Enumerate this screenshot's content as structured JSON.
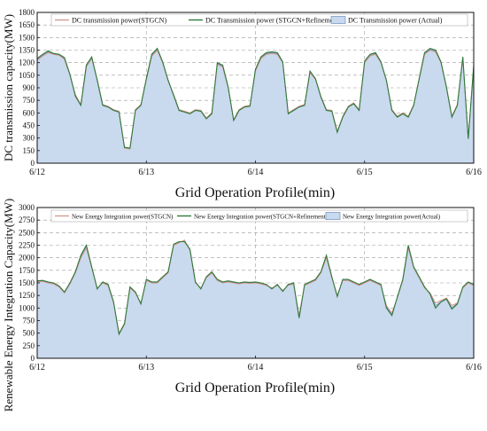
{
  "colors": {
    "stgcn": "#d08f86",
    "refinement": "#2e7a3a",
    "actual_fill": "#c9d9ee",
    "actual_line": "#5b7fb8",
    "grid": "#9a9a9a"
  },
  "chart_data": [
    {
      "type": "area",
      "xlabel": "Grid Operation Profile(min)",
      "ylabel": "DC transmission capacity(MW)",
      "xticks": [
        "6/12",
        "6/13",
        "6/14",
        "6/15",
        "6/16"
      ],
      "xlim": [
        0,
        4
      ],
      "ylim": [
        0,
        1800
      ],
      "yticks": [
        0,
        150,
        300,
        450,
        600,
        750,
        900,
        1050,
        1200,
        1350,
        1500,
        1650,
        1800
      ],
      "grid": true,
      "legend": "top",
      "x": [
        0.0,
        0.05,
        0.1,
        0.15,
        0.2,
        0.25,
        0.3,
        0.35,
        0.4,
        0.45,
        0.5,
        0.55,
        0.6,
        0.65,
        0.7,
        0.75,
        0.8,
        0.85,
        0.9,
        0.95,
        1.0,
        1.05,
        1.1,
        1.15,
        1.2,
        1.25,
        1.3,
        1.35,
        1.4,
        1.45,
        1.5,
        1.55,
        1.6,
        1.65,
        1.7,
        1.75,
        1.8,
        1.85,
        1.9,
        1.95,
        2.0,
        2.05,
        2.1,
        2.15,
        2.2,
        2.25,
        2.3,
        2.35,
        2.4,
        2.45,
        2.5,
        2.55,
        2.6,
        2.65,
        2.7,
        2.75,
        2.8,
        2.85,
        2.9,
        2.95,
        3.0,
        3.05,
        3.1,
        3.15,
        3.2,
        3.25,
        3.3,
        3.35,
        3.4,
        3.45,
        3.5,
        3.55,
        3.6,
        3.65,
        3.7,
        3.75,
        3.8,
        3.85,
        3.9,
        3.95,
        4.0
      ],
      "series": [
        {
          "name": "DC transmission power(STGCN)",
          "style": "line",
          "values": [
            1230,
            1280,
            1320,
            1300,
            1290,
            1240,
            1050,
            820,
            700,
            1150,
            1250,
            1000,
            700,
            680,
            640,
            620,
            180,
            170,
            640,
            700,
            1000,
            1280,
            1350,
            1200,
            980,
            820,
            640,
            620,
            600,
            640,
            630,
            540,
            600,
            1180,
            1150,
            900,
            520,
            640,
            680,
            690,
            1100,
            1250,
            1300,
            1310,
            1300,
            1200,
            600,
            640,
            680,
            700,
            1080,
            1000,
            800,
            640,
            630,
            380,
            560,
            680,
            720,
            640,
            1200,
            1280,
            1300,
            1200,
            980,
            640,
            560,
            600,
            560,
            700,
            1000,
            1300,
            1350,
            1330,
            1200,
            900,
            560,
            700,
            1250,
            300,
            1150
          ]
        },
        {
          "name": "DC Transmission power (STGCN+Refinement)",
          "style": "line",
          "values": [
            1250,
            1300,
            1340,
            1310,
            1300,
            1260,
            1060,
            800,
            690,
            1170,
            1270,
            990,
            690,
            670,
            630,
            610,
            190,
            180,
            630,
            690,
            1010,
            1300,
            1370,
            1210,
            990,
            810,
            630,
            610,
            590,
            630,
            620,
            530,
            590,
            1200,
            1170,
            910,
            510,
            630,
            670,
            680,
            1120,
            1270,
            1320,
            1330,
            1320,
            1210,
            590,
            630,
            670,
            690,
            1100,
            1010,
            790,
            630,
            620,
            370,
            550,
            670,
            710,
            630,
            1220,
            1300,
            1320,
            1210,
            990,
            630,
            550,
            590,
            550,
            690,
            1010,
            1320,
            1370,
            1350,
            1210,
            910,
            550,
            690,
            1270,
            290,
            1170
          ]
        },
        {
          "name": "DC Transmission power (Actual)",
          "style": "area",
          "values": [
            1240,
            1290,
            1330,
            1305,
            1295,
            1250,
            1055,
            810,
            695,
            1160,
            1260,
            995,
            695,
            675,
            635,
            615,
            185,
            175,
            635,
            695,
            1005,
            1290,
            1360,
            1205,
            985,
            815,
            635,
            615,
            595,
            635,
            625,
            535,
            595,
            1190,
            1160,
            905,
            515,
            635,
            675,
            685,
            1110,
            1260,
            1310,
            1320,
            1310,
            1205,
            595,
            635,
            675,
            695,
            1090,
            1005,
            795,
            635,
            625,
            375,
            555,
            675,
            715,
            635,
            1210,
            1290,
            1310,
            1205,
            985,
            635,
            555,
            595,
            555,
            695,
            1005,
            1310,
            1360,
            1340,
            1205,
            905,
            555,
            695,
            1260,
            295,
            1160
          ]
        }
      ]
    },
    {
      "type": "area",
      "xlabel": "Grid Operation Profile(min)",
      "ylabel": "Renewable Energy Integration Capacity(MW)",
      "xticks": [
        "6/12",
        "6/13",
        "6/14",
        "6/15",
        "6/16"
      ],
      "xlim": [
        0,
        4
      ],
      "ylim": [
        0,
        3000
      ],
      "yticks": [
        0,
        250,
        500,
        750,
        1000,
        1250,
        1500,
        1750,
        2000,
        2250,
        2500,
        2750,
        3000
      ],
      "grid": true,
      "legend": "top",
      "x": [
        0.0,
        0.05,
        0.1,
        0.15,
        0.2,
        0.25,
        0.3,
        0.35,
        0.4,
        0.45,
        0.5,
        0.55,
        0.6,
        0.65,
        0.7,
        0.75,
        0.8,
        0.85,
        0.9,
        0.95,
        1.0,
        1.05,
        1.1,
        1.15,
        1.2,
        1.25,
        1.3,
        1.35,
        1.4,
        1.45,
        1.5,
        1.55,
        1.6,
        1.65,
        1.7,
        1.75,
        1.8,
        1.85,
        1.9,
        1.95,
        2.0,
        2.05,
        2.1,
        2.15,
        2.2,
        2.25,
        2.3,
        2.35,
        2.4,
        2.45,
        2.5,
        2.55,
        2.6,
        2.65,
        2.7,
        2.75,
        2.8,
        2.85,
        2.9,
        2.95,
        3.0,
        3.05,
        3.1,
        3.15,
        3.2,
        3.25,
        3.3,
        3.35,
        3.4,
        3.45,
        3.5,
        3.55,
        3.6,
        3.65,
        3.7,
        3.75,
        3.8,
        3.85,
        3.9,
        3.95,
        4.0
      ],
      "series": [
        {
          "name": "New Energy Integration power(STGCN)",
          "style": "line",
          "values": [
            1520,
            1530,
            1500,
            1480,
            1420,
            1300,
            1480,
            1700,
            2000,
            2200,
            1800,
            1400,
            1500,
            1450,
            1100,
            500,
            700,
            1400,
            1300,
            1100,
            1550,
            1500,
            1500,
            1600,
            1700,
            2250,
            2300,
            2350,
            2150,
            1500,
            1400,
            1600,
            1700,
            1550,
            1500,
            1520,
            1500,
            1480,
            1500,
            1490,
            1500,
            1480,
            1450,
            1400,
            1450,
            1350,
            1450,
            1480,
            850,
            1450,
            1500,
            1550,
            1700,
            2000,
            1600,
            1250,
            1550,
            1550,
            1500,
            1450,
            1500,
            1550,
            1500,
            1450,
            1050,
            900,
            1200,
            1550,
            2200,
            1800,
            1600,
            1400,
            1300,
            1100,
            1150,
            1200,
            1050,
            1100,
            1400,
            1500,
            1450
          ]
        },
        {
          "name": "New Energy Integration power(STGCN+Refinement)",
          "style": "line",
          "values": [
            1540,
            1550,
            1520,
            1500,
            1440,
            1320,
            1500,
            1720,
            2050,
            2250,
            1820,
            1380,
            1520,
            1470,
            1120,
            480,
            680,
            1420,
            1320,
            1080,
            1570,
            1520,
            1520,
            1620,
            1720,
            2270,
            2320,
            2320,
            2170,
            1520,
            1380,
            1620,
            1720,
            1570,
            1520,
            1540,
            1520,
            1500,
            1520,
            1510,
            1520,
            1500,
            1470,
            1380,
            1470,
            1330,
            1470,
            1500,
            800,
            1470,
            1520,
            1570,
            1720,
            2050,
            1620,
            1230,
            1570,
            1570,
            1520,
            1470,
            1520,
            1570,
            1520,
            1470,
            1000,
            850,
            1220,
            1570,
            2250,
            1820,
            1620,
            1420,
            1280,
            1000,
            1120,
            1180,
            980,
            1080,
            1420,
            1520,
            1470
          ]
        },
        {
          "name": "New Energy Integration power(Actual)",
          "style": "area",
          "values": [
            1530,
            1540,
            1510,
            1490,
            1430,
            1310,
            1490,
            1710,
            2020,
            2230,
            1810,
            1390,
            1510,
            1460,
            1110,
            490,
            690,
            1410,
            1310,
            1090,
            1560,
            1510,
            1510,
            1610,
            1710,
            2260,
            2310,
            2330,
            2160,
            1510,
            1390,
            1610,
            1710,
            1560,
            1510,
            1530,
            1510,
            1490,
            1510,
            1500,
            1510,
            1490,
            1460,
            1390,
            1460,
            1340,
            1460,
            1490,
            820,
            1460,
            1510,
            1560,
            1710,
            2020,
            1610,
            1240,
            1560,
            1560,
            1510,
            1460,
            1510,
            1560,
            1510,
            1460,
            1020,
            870,
            1210,
            1560,
            2230,
            1810,
            1610,
            1410,
            1290,
            1050,
            1130,
            1190,
            1010,
            1090,
            1410,
            1510,
            1460
          ]
        }
      ]
    }
  ]
}
